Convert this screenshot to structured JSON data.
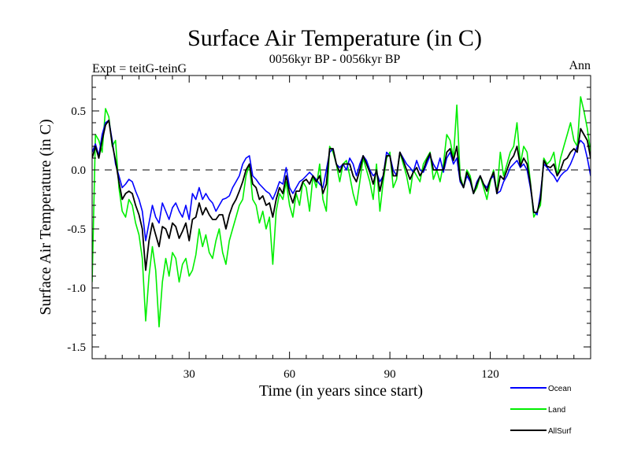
{
  "chart_data": {
    "type": "line",
    "title": "Surface Air Temperature (in C)",
    "subtitle": "0056kyr BP - 0056kyr BP",
    "left_label": "Expt = teitG-teinG",
    "right_label": "Ann",
    "xlabel": "Time (in years since start)",
    "ylabel": "Surface Air Temperature (in C)",
    "xlim": [
      1,
      150
    ],
    "ylim": [
      -1.6,
      0.8
    ],
    "xticks": [
      30,
      60,
      90,
      120
    ],
    "xtick_labels": [
      "30",
      "60",
      "90",
      "120"
    ],
    "yticks": [
      0.5,
      0.0,
      -0.5,
      -1.0,
      -1.5
    ],
    "ytick_labels": [
      "0.5",
      "0.0",
      "-0.5",
      "-1.0",
      "-1.5"
    ],
    "zero_line": 0.0,
    "series": [
      {
        "name": "Ocean",
        "color": "#0000ff",
        "values": [
          0.15,
          0.22,
          0.12,
          0.3,
          0.4,
          0.42,
          0.25,
          0.05,
          -0.05,
          -0.15,
          -0.12,
          -0.08,
          -0.1,
          -0.18,
          -0.25,
          -0.35,
          -0.6,
          -0.45,
          -0.3,
          -0.4,
          -0.45,
          -0.28,
          -0.35,
          -0.42,
          -0.32,
          -0.28,
          -0.35,
          -0.4,
          -0.3,
          -0.42,
          -0.2,
          -0.25,
          -0.15,
          -0.25,
          -0.2,
          -0.25,
          -0.28,
          -0.35,
          -0.3,
          -0.25,
          -0.24,
          -0.22,
          -0.15,
          -0.1,
          -0.05,
          0.05,
          0.1,
          0.12,
          -0.05,
          -0.08,
          -0.12,
          -0.15,
          -0.18,
          -0.2,
          -0.25,
          -0.18,
          -0.1,
          -0.12,
          0.02,
          -0.15,
          -0.2,
          -0.15,
          -0.1,
          -0.08,
          -0.05,
          -0.02,
          -0.05,
          -0.08,
          -0.12,
          -0.15,
          0.0,
          0.15,
          0.18,
          0.05,
          0.02,
          0.05,
          0.0,
          0.1,
          0.05,
          -0.05,
          0.05,
          0.12,
          0.08,
          0.0,
          -0.05,
          -0.02,
          -0.1,
          -0.05,
          0.15,
          0.12,
          0.0,
          -0.05,
          0.15,
          0.1,
          0.05,
          0.02,
          -0.02,
          0.08,
          0.0,
          -0.02,
          0.05,
          0.12,
          0.05,
          0.0,
          0.1,
          -0.02,
          0.1,
          0.15,
          0.05,
          0.1,
          -0.1,
          -0.15,
          -0.05,
          -0.1,
          -0.2,
          -0.1,
          -0.05,
          -0.12,
          -0.15,
          -0.08,
          -0.05,
          -0.2,
          -0.18,
          -0.1,
          -0.05,
          0.02,
          0.05,
          0.08,
          0.02,
          0.05,
          0.0,
          -0.15,
          -0.35,
          -0.38,
          -0.2,
          0.05,
          0.02,
          -0.02,
          -0.05,
          -0.1,
          -0.05,
          -0.02,
          0.0,
          0.05,
          0.12,
          0.2,
          0.25,
          0.22,
          0.1,
          -0.05,
          -0.05,
          -0.1
        ]
      },
      {
        "name": "Land",
        "color": "#00ee00",
        "values": [
          -0.95,
          0.3,
          0.25,
          0.15,
          0.52,
          0.45,
          0.2,
          0.25,
          -0.15,
          -0.35,
          -0.4,
          -0.25,
          -0.3,
          -0.45,
          -0.55,
          -0.75,
          -1.28,
          -0.9,
          -0.65,
          -0.85,
          -1.33,
          -0.95,
          -0.75,
          -0.9,
          -0.7,
          -0.75,
          -0.95,
          -0.8,
          -0.75,
          -0.9,
          -0.85,
          -0.72,
          -0.5,
          -0.65,
          -0.55,
          -0.7,
          -0.75,
          -0.6,
          -0.5,
          -0.7,
          -0.8,
          -0.6,
          -0.5,
          -0.4,
          -0.3,
          -0.25,
          -0.05,
          0.05,
          -0.25,
          -0.3,
          -0.45,
          -0.35,
          -0.5,
          -0.4,
          -0.8,
          -0.35,
          -0.2,
          -0.25,
          -0.1,
          -0.3,
          -0.4,
          -0.2,
          -0.3,
          -0.1,
          -0.15,
          -0.35,
          -0.05,
          -0.15,
          0.05,
          -0.25,
          -0.35,
          0.2,
          0.15,
          0.05,
          -0.1,
          0.05,
          0.08,
          -0.05,
          -0.2,
          -0.3,
          -0.1,
          0.1,
          0.0,
          -0.1,
          -0.25,
          0.05,
          -0.35,
          -0.1,
          0.1,
          0.15,
          -0.15,
          -0.08,
          0.15,
          0.05,
          -0.05,
          -0.2,
          0.0,
          -0.05,
          -0.1,
          0.05,
          0.1,
          0.15,
          -0.08,
          0.0,
          -0.1,
          0.05,
          0.3,
          0.25,
          0.1,
          0.55,
          -0.05,
          -0.15,
          0.0,
          -0.05,
          -0.2,
          -0.15,
          -0.05,
          -0.15,
          -0.25,
          -0.1,
          0.0,
          -0.2,
          0.15,
          -0.05,
          0.05,
          0.15,
          0.2,
          0.4,
          0.05,
          0.2,
          0.15,
          -0.1,
          -0.4,
          -0.35,
          -0.3,
          0.1,
          0.05,
          0.08,
          0.15,
          -0.05,
          0.1,
          0.2,
          0.3,
          0.4,
          0.25,
          0.2,
          0.62,
          0.5,
          0.35,
          0.15,
          0.05,
          -0.15
        ]
      },
      {
        "name": "AllSurf",
        "color": "#000000",
        "values": [
          0.1,
          0.2,
          0.1,
          0.25,
          0.38,
          0.42,
          0.22,
          0.08,
          -0.1,
          -0.25,
          -0.2,
          -0.18,
          -0.2,
          -0.3,
          -0.38,
          -0.5,
          -0.85,
          -0.6,
          -0.45,
          -0.55,
          -0.65,
          -0.48,
          -0.5,
          -0.58,
          -0.45,
          -0.48,
          -0.58,
          -0.52,
          -0.45,
          -0.6,
          -0.42,
          -0.4,
          -0.28,
          -0.38,
          -0.32,
          -0.38,
          -0.42,
          -0.42,
          -0.38,
          -0.38,
          -0.5,
          -0.38,
          -0.3,
          -0.25,
          -0.18,
          -0.1,
          0.0,
          0.05,
          -0.12,
          -0.15,
          -0.25,
          -0.22,
          -0.3,
          -0.28,
          -0.4,
          -0.25,
          -0.15,
          -0.2,
          -0.05,
          -0.2,
          -0.28,
          -0.18,
          -0.18,
          -0.1,
          -0.08,
          -0.12,
          -0.05,
          -0.1,
          -0.05,
          -0.2,
          -0.12,
          0.18,
          0.18,
          0.05,
          -0.02,
          0.05,
          0.05,
          0.05,
          -0.05,
          -0.1,
          0.0,
          0.12,
          0.05,
          -0.02,
          -0.12,
          0.0,
          -0.18,
          -0.05,
          0.12,
          0.12,
          -0.05,
          -0.05,
          0.15,
          0.08,
          0.0,
          -0.08,
          -0.02,
          0.02,
          -0.05,
          0.0,
          0.08,
          0.14,
          0.0,
          0.0,
          0.0,
          0.0,
          0.15,
          0.18,
          0.08,
          0.2,
          -0.08,
          -0.15,
          -0.02,
          -0.08,
          -0.2,
          -0.12,
          -0.05,
          -0.12,
          -0.18,
          -0.08,
          -0.02,
          -0.2,
          -0.05,
          -0.08,
          0.0,
          0.08,
          0.12,
          0.2,
          0.03,
          0.1,
          0.05,
          -0.12,
          -0.36,
          -0.36,
          -0.25,
          0.08,
          0.03,
          0.02,
          0.05,
          -0.05,
          0.0,
          0.08,
          0.1,
          0.15,
          0.18,
          0.15,
          0.35,
          0.3,
          0.25,
          0.1,
          -0.02,
          -0.1
        ]
      }
    ],
    "legend": [
      "Ocean",
      "Land",
      "AllSurf"
    ],
    "legend_position": "bottom-right"
  }
}
